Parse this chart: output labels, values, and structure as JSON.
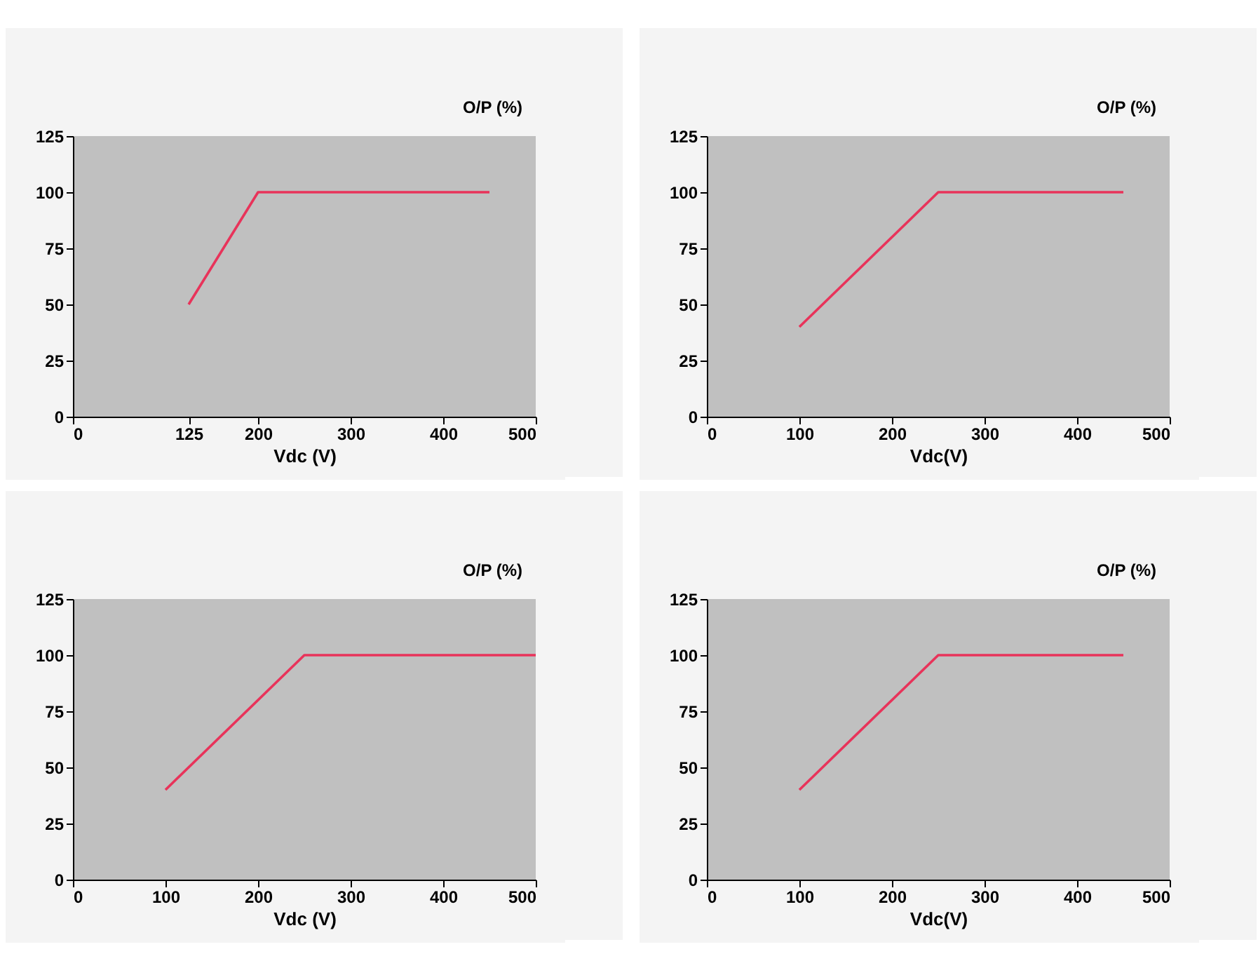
{
  "chart_data": [
    {
      "type": "line",
      "xlabel": "Vdc (V)",
      "ylabel": "O/P (%)",
      "x": [
        125,
        200,
        450
      ],
      "series": [
        {
          "color": "#e8335a",
          "values": [
            50,
            100,
            100
          ]
        }
      ],
      "xlim": [
        0,
        500
      ],
      "xticks": [
        0,
        125,
        200,
        300,
        400,
        500
      ],
      "ylim": [
        0,
        125
      ],
      "yticks": [
        0,
        25,
        50,
        75,
        100,
        125
      ],
      "marker": "none"
    },
    {
      "type": "line",
      "xlabel": "Vdc(V)",
      "ylabel": "O/P (%)",
      "x": [
        100,
        250,
        450
      ],
      "series": [
        {
          "color": "#e8335a",
          "values": [
            40,
            100,
            100
          ]
        }
      ],
      "xlim": [
        0,
        500
      ],
      "xticks": [
        0,
        100,
        200,
        300,
        400,
        500
      ],
      "ylim": [
        0,
        125
      ],
      "yticks": [
        0,
        25,
        50,
        75,
        100,
        125
      ],
      "marker": "none"
    },
    {
      "type": "line",
      "xlabel": "Vdc (V)",
      "ylabel": "O/P (%)",
      "x": [
        100,
        250,
        500
      ],
      "series": [
        {
          "color": "#e8335a",
          "values": [
            40,
            100,
            100
          ]
        }
      ],
      "xlim": [
        0,
        500
      ],
      "xticks": [
        0,
        100,
        200,
        300,
        400,
        500
      ],
      "ylim": [
        0,
        125
      ],
      "yticks": [
        0,
        25,
        50,
        75,
        100,
        125
      ],
      "marker": "none"
    },
    {
      "type": "line",
      "xlabel": "Vdc(V)",
      "ylabel": "O/P (%)",
      "x": [
        100,
        250,
        450
      ],
      "series": [
        {
          "color": "#e8335a",
          "values": [
            40,
            100,
            100
          ]
        }
      ],
      "xlim": [
        0,
        500
      ],
      "xticks": [
        0,
        100,
        200,
        300,
        400,
        500
      ],
      "ylim": [
        0,
        125
      ],
      "yticks": [
        0,
        25,
        50,
        75,
        100,
        125
      ],
      "marker": "none"
    }
  ]
}
